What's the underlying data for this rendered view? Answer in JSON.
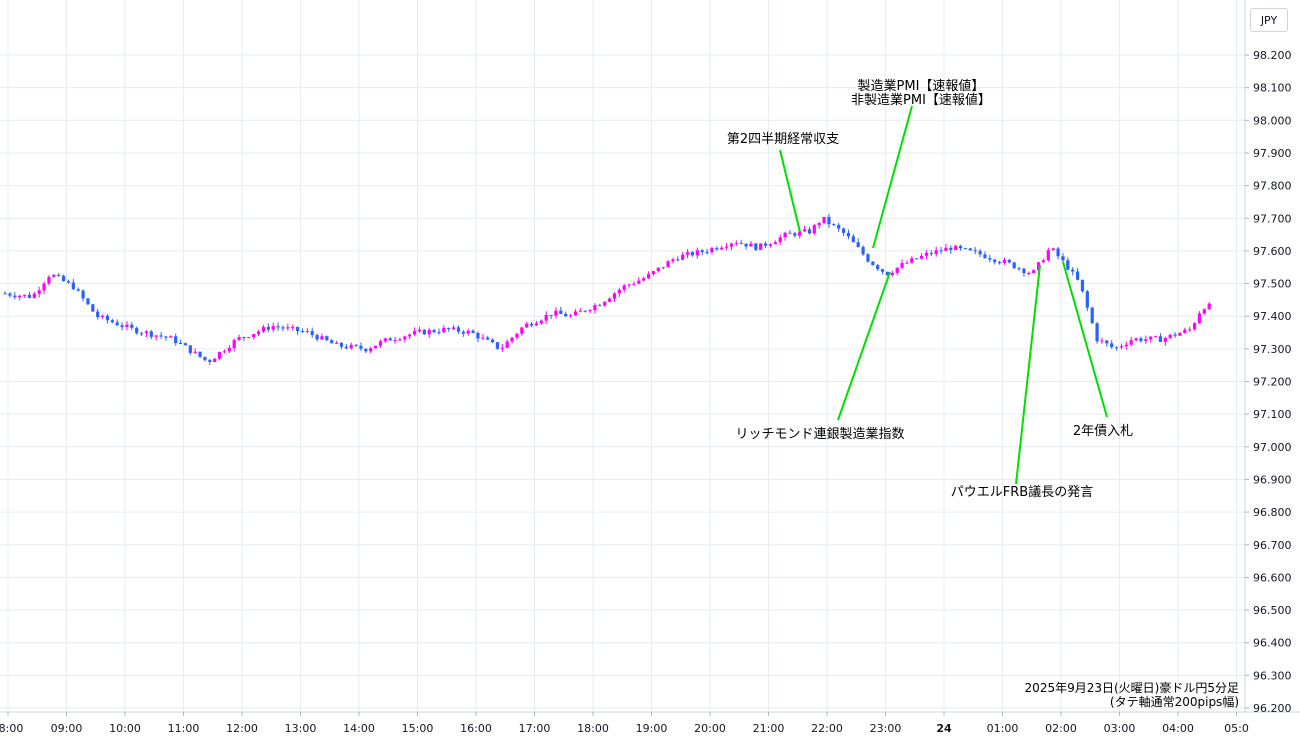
{
  "currency_badge": "JPY",
  "caption": {
    "line1": "2025年9月23日(火曜日)豪ドル円5分足",
    "line2": "(タテ軸通常200pips幅)"
  },
  "colors": {
    "up": "#ff00ff",
    "down": "#2962ff",
    "annotation_line": "#00e000",
    "grid": "#e6ecf2"
  },
  "chart_data": {
    "type": "candlestick",
    "y_ticks": [
      "98.200",
      "98.100",
      "98.000",
      "97.900",
      "97.800",
      "97.700",
      "97.600",
      "97.500",
      "97.400",
      "97.300",
      "97.200",
      "97.100",
      "97.000",
      "96.900",
      "96.800",
      "96.700",
      "96.600",
      "96.500",
      "96.400",
      "96.300",
      "96.200"
    ],
    "ylim": [
      96.2,
      98.2
    ],
    "x_ticks": [
      {
        "label": "8:00",
        "bold": false
      },
      {
        "label": "09:00",
        "bold": false
      },
      {
        "label": "10:00",
        "bold": false
      },
      {
        "label": "11:00",
        "bold": false
      },
      {
        "label": "12:00",
        "bold": false
      },
      {
        "label": "13:00",
        "bold": false
      },
      {
        "label": "14:00",
        "bold": false
      },
      {
        "label": "15:00",
        "bold": false
      },
      {
        "label": "16:00",
        "bold": false
      },
      {
        "label": "17:00",
        "bold": false
      },
      {
        "label": "18:00",
        "bold": false
      },
      {
        "label": "19:00",
        "bold": false
      },
      {
        "label": "20:00",
        "bold": false
      },
      {
        "label": "21:00",
        "bold": false
      },
      {
        "label": "22:00",
        "bold": false
      },
      {
        "label": "23:00",
        "bold": false
      },
      {
        "label": "24",
        "bold": true
      },
      {
        "label": "01:00",
        "bold": false
      },
      {
        "label": "02:00",
        "bold": false
      },
      {
        "label": "03:00",
        "bold": false
      },
      {
        "label": "04:00",
        "bold": false
      },
      {
        "label": "05:0",
        "bold": false
      }
    ],
    "hour_anchors": [
      {
        "hour": 8,
        "price": 97.47
      },
      {
        "hour": 8.5,
        "price": 97.46
      },
      {
        "hour": 8.8,
        "price": 97.53
      },
      {
        "hour": 9.2,
        "price": 97.49
      },
      {
        "hour": 9.6,
        "price": 97.4
      },
      {
        "hour": 10.2,
        "price": 97.36
      },
      {
        "hour": 10.9,
        "price": 97.33
      },
      {
        "hour": 11.5,
        "price": 97.26
      },
      {
        "hour": 12.0,
        "price": 97.33
      },
      {
        "hour": 12.6,
        "price": 97.37
      },
      {
        "hour": 13.2,
        "price": 97.35
      },
      {
        "hour": 13.7,
        "price": 97.31
      },
      {
        "hour": 14.2,
        "price": 97.3
      },
      {
        "hour": 14.6,
        "price": 97.33
      },
      {
        "hour": 15.1,
        "price": 97.35
      },
      {
        "hour": 15.6,
        "price": 97.36
      },
      {
        "hour": 16.0,
        "price": 97.35
      },
      {
        "hour": 16.5,
        "price": 97.3
      },
      {
        "hour": 16.9,
        "price": 97.37
      },
      {
        "hour": 17.4,
        "price": 97.41
      },
      {
        "hour": 17.7,
        "price": 97.4
      },
      {
        "hour": 18.2,
        "price": 97.44
      },
      {
        "hour": 18.6,
        "price": 97.49
      },
      {
        "hour": 19.0,
        "price": 97.52
      },
      {
        "hour": 19.5,
        "price": 97.58
      },
      {
        "hour": 20.0,
        "price": 97.6
      },
      {
        "hour": 20.5,
        "price": 97.63
      },
      {
        "hour": 20.9,
        "price": 97.61
      },
      {
        "hour": 21.4,
        "price": 97.65
      },
      {
        "hour": 21.8,
        "price": 97.66
      },
      {
        "hour": 22.0,
        "price": 97.7
      },
      {
        "hour": 22.4,
        "price": 97.65
      },
      {
        "hour": 22.8,
        "price": 97.57
      },
      {
        "hour": 23.1,
        "price": 97.53
      },
      {
        "hour": 23.4,
        "price": 97.56
      },
      {
        "hour": 23.8,
        "price": 97.59
      },
      {
        "hour": 24.2,
        "price": 97.61
      },
      {
        "hour": 24.7,
        "price": 97.59
      },
      {
        "hour": 25.2,
        "price": 97.56
      },
      {
        "hour": 25.6,
        "price": 97.53
      },
      {
        "hour": 25.9,
        "price": 97.61
      },
      {
        "hour": 26.2,
        "price": 97.55
      },
      {
        "hour": 26.4,
        "price": 97.5
      },
      {
        "hour": 26.7,
        "price": 97.33
      },
      {
        "hour": 27.0,
        "price": 97.3
      },
      {
        "hour": 27.3,
        "price": 97.33
      },
      {
        "hour": 27.8,
        "price": 97.33
      },
      {
        "hour": 28.3,
        "price": 97.36
      },
      {
        "hour": 28.5,
        "price": 97.43
      }
    ],
    "annotations": [
      {
        "lines": [
          "第2四半期経常収支"
        ],
        "time": 21.65,
        "label_anchor": "21:15"
      },
      {
        "lines": [
          "製造業PMI【速報値】",
          "非製造業PMI【速報値】"
        ],
        "time": 22.75,
        "label_anchor": "22:45"
      },
      {
        "lines": [
          "リッチモンド連銀製造業指数"
        ],
        "time": 23.0,
        "label_anchor": "21:30"
      },
      {
        "lines": [
          "パウエルFRB議長の発言"
        ],
        "time": 25.6,
        "label_anchor": "24:45"
      },
      {
        "lines": [
          "2年債入札"
        ],
        "time": 26.0,
        "label_anchor": "27:05"
      }
    ]
  }
}
